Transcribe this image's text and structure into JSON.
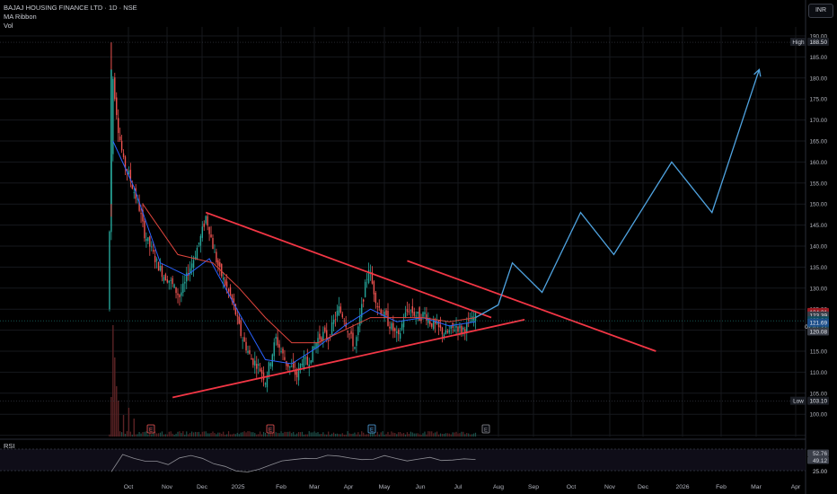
{
  "header": {
    "title": "BAJAJ HOUSING FINANCE LTD · 1D · NSE",
    "indicator1": "MA Ribbon",
    "indicator2": "Vol",
    "currency": "INR",
    "rsi_label": "RSI"
  },
  "colors": {
    "up": "#26a69a",
    "down": "#ef5350",
    "trendline": "#f23645",
    "projection": "#4fa3e0",
    "ma_blue": "#2962ff",
    "ma_red": "#e0453d",
    "rsi_line": "#8f8f96",
    "bg": "#000000",
    "grid": "#16181d"
  },
  "chart_data": {
    "type": "candlestick",
    "x_ticks": [
      "Oct",
      "Nov",
      "Dec",
      "2025",
      "Feb",
      "Mar",
      "Apr",
      "May",
      "Jun",
      "Jul",
      "Aug",
      "Sep",
      "Oct",
      "Nov",
      "Dec",
      "2026",
      "Feb",
      "Mar",
      "Apr"
    ],
    "y_ticks": [
      "190.00",
      "185.00",
      "180.00",
      "175.00",
      "170.00",
      "165.00",
      "160.00",
      "155.00",
      "150.00",
      "145.00",
      "140.00",
      "135.00",
      "130.00",
      "125.00",
      "120.00",
      "115.00",
      "110.00",
      "105.00",
      "100.00",
      "95.00",
      "90.00",
      "85.00",
      "80.00",
      "75.00"
    ],
    "ylim": [
      75,
      192
    ],
    "price_labels": [
      {
        "tag": "High",
        "value": "188.50",
        "price": 188.5,
        "color": "#1a1d24"
      },
      {
        "tag": "",
        "value": "124.21",
        "price": 124.21,
        "color": "#9b1b22"
      },
      {
        "tag": "",
        "value": "123.39",
        "price": 123.39,
        "color": "#3a3e48"
      },
      {
        "tag": "",
        "value": "122.24",
        "price": 122.24,
        "color": "#0f4c5c"
      },
      {
        "tag": "",
        "value": "02:47:21",
        "price": 120.8,
        "color": "#0f4c5c"
      },
      {
        "tag": "",
        "value": "121.69",
        "price": 121.69,
        "color": "#1c4e8a"
      },
      {
        "tag": "",
        "value": "120.08",
        "price": 119.6,
        "color": "#3a3e48"
      },
      {
        "tag": "Low",
        "value": "103.10",
        "price": 103.1,
        "color": "#1a1d24"
      },
      {
        "tag": "",
        "value": "4.604M",
        "price": 79.8,
        "color": "#0f5f56"
      }
    ],
    "price_path": [
      [
        0,
        125
      ],
      [
        3,
        180
      ],
      [
        6,
        168
      ],
      [
        9,
        160
      ],
      [
        12,
        157
      ],
      [
        15,
        153
      ],
      [
        18,
        149
      ],
      [
        21,
        143
      ],
      [
        25,
        139
      ],
      [
        28,
        136
      ],
      [
        32,
        133
      ],
      [
        35,
        132
      ],
      [
        38,
        130
      ],
      [
        41,
        128
      ],
      [
        44,
        131
      ],
      [
        46,
        134
      ],
      [
        49,
        137
      ],
      [
        53,
        142
      ],
      [
        56,
        147
      ],
      [
        58,
        144
      ],
      [
        61,
        138
      ],
      [
        64,
        134
      ],
      [
        67,
        131
      ],
      [
        70,
        128
      ],
      [
        73,
        124
      ],
      [
        76,
        119
      ],
      [
        79,
        116
      ],
      [
        82,
        113
      ],
      [
        85,
        112
      ],
      [
        88,
        110
      ],
      [
        90,
        108
      ],
      [
        93,
        113
      ],
      [
        96,
        118
      ],
      [
        99,
        115
      ],
      [
        102,
        112
      ],
      [
        105,
        111
      ],
      [
        108,
        109
      ],
      [
        111,
        113
      ],
      [
        114,
        112
      ],
      [
        117,
        115
      ],
      [
        120,
        118
      ],
      [
        123,
        119
      ],
      [
        126,
        118
      ],
      [
        129,
        122
      ],
      [
        132,
        125
      ],
      [
        135,
        123
      ],
      [
        138,
        119
      ],
      [
        141,
        116
      ],
      [
        143,
        120
      ],
      [
        146,
        128
      ],
      [
        149,
        135
      ],
      [
        151,
        131
      ],
      [
        154,
        126
      ],
      [
        157,
        124
      ],
      [
        160,
        122
      ],
      [
        163,
        120
      ],
      [
        166,
        118
      ],
      [
        169,
        123
      ],
      [
        172,
        125
      ],
      [
        175,
        124
      ],
      [
        178,
        123
      ],
      [
        181,
        124
      ],
      [
        184,
        122
      ],
      [
        187,
        121
      ],
      [
        190,
        120
      ],
      [
        193,
        119
      ],
      [
        196,
        120
      ],
      [
        199,
        121
      ],
      [
        202,
        120
      ],
      [
        205,
        121
      ],
      [
        207,
        122
      ],
      [
        210,
        123
      ]
    ],
    "ma_fast": [
      [
        3,
        165
      ],
      [
        15,
        154
      ],
      [
        30,
        136
      ],
      [
        45,
        133
      ],
      [
        58,
        137
      ],
      [
        75,
        124
      ],
      [
        90,
        113
      ],
      [
        105,
        112
      ],
      [
        120,
        116
      ],
      [
        135,
        121
      ],
      [
        150,
        125
      ],
      [
        165,
        122
      ],
      [
        180,
        123
      ],
      [
        195,
        121
      ],
      [
        210,
        122
      ]
    ],
    "ma_slow": [
      [
        20,
        150
      ],
      [
        40,
        138
      ],
      [
        60,
        136
      ],
      [
        75,
        130
      ],
      [
        90,
        123
      ],
      [
        105,
        117
      ],
      [
        120,
        117
      ],
      [
        135,
        120
      ],
      [
        150,
        123
      ],
      [
        165,
        123
      ],
      [
        180,
        123
      ],
      [
        195,
        122
      ],
      [
        210,
        123
      ]
    ],
    "trendlines": [
      {
        "from": {
          "day": 56,
          "price": 148
        },
        "to": {
          "day": 219,
          "price": 123
        }
      },
      {
        "from": {
          "day": 37,
          "price": 104
        },
        "to": {
          "day": 238,
          "price": 122.5
        }
      },
      {
        "from": {
          "day": 171,
          "price": 136.5
        },
        "to": {
          "day": 313,
          "price": 115
        }
      }
    ],
    "projection": [
      [
        210,
        123
      ],
      [
        223,
        126
      ],
      [
        231,
        136
      ],
      [
        248,
        129
      ],
      [
        270,
        148
      ],
      [
        289,
        138
      ],
      [
        322,
        160
      ],
      [
        345,
        148
      ],
      [
        372,
        182
      ]
    ],
    "volume_spikes": [
      [
        2,
        11
      ],
      [
        3,
        31
      ],
      [
        4,
        22
      ],
      [
        5,
        14
      ],
      [
        6,
        10
      ],
      [
        9,
        6
      ],
      [
        12,
        8
      ],
      [
        15,
        5
      ]
    ],
    "rsi": {
      "ylim": [
        25,
        75
      ],
      "ticks": [
        "52.76",
        "49.12",
        "25.00"
      ],
      "values": [
        30,
        62,
        55,
        48,
        45,
        40,
        52,
        60,
        50,
        42,
        38,
        30,
        28,
        35,
        42,
        48,
        50,
        55,
        53,
        60,
        58,
        54,
        50,
        52,
        55,
        50,
        48,
        51,
        53,
        50,
        49,
        52,
        53
      ]
    }
  }
}
